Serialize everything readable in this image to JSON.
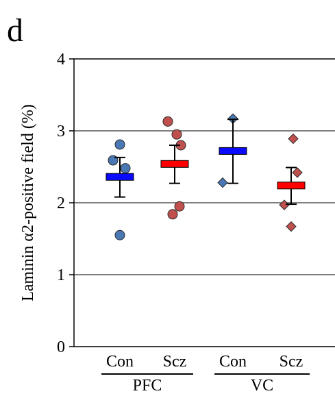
{
  "panel_label": "d",
  "chart_data": {
    "type": "scatter",
    "ylabel": "Laminin α2-positive field (%)",
    "ylim": [
      0,
      4
    ],
    "yticks": [
      0,
      1,
      2,
      3,
      4
    ],
    "grid": true,
    "categories": [
      "Con",
      "Scz",
      "Con",
      "Scz"
    ],
    "regions": [
      {
        "name": "PFC",
        "categories": [
          0,
          1
        ]
      },
      {
        "name": "VC",
        "categories": [
          2,
          3
        ]
      }
    ],
    "groups": [
      {
        "label": "Con",
        "region": "PFC",
        "marker": "circle",
        "color": "#4a78b4",
        "mean_color": "#0a0aff",
        "points": [
          2.81,
          2.59,
          2.48,
          1.55
        ],
        "mean": 2.36,
        "err_low": 2.08,
        "err_high": 2.63
      },
      {
        "label": "Scz",
        "region": "PFC",
        "marker": "circle",
        "color": "#c0504d",
        "mean_color": "#ff0000",
        "points": [
          3.13,
          2.95,
          2.8,
          1.95,
          1.84
        ],
        "mean": 2.54,
        "err_low": 2.27,
        "err_high": 2.8
      },
      {
        "label": "Con",
        "region": "VC",
        "marker": "diamond",
        "color": "#4a78b4",
        "mean_color": "#0a0aff",
        "points": [
          3.17,
          2.28
        ],
        "mean": 2.72,
        "err_low": 2.27,
        "err_high": 3.16
      },
      {
        "label": "Scz",
        "region": "VC",
        "marker": "diamond",
        "color": "#c0504d",
        "mean_color": "#ff0000",
        "points": [
          2.89,
          2.42,
          1.97,
          1.67
        ],
        "mean": 2.24,
        "err_low": 1.98,
        "err_high": 2.49
      }
    ]
  }
}
